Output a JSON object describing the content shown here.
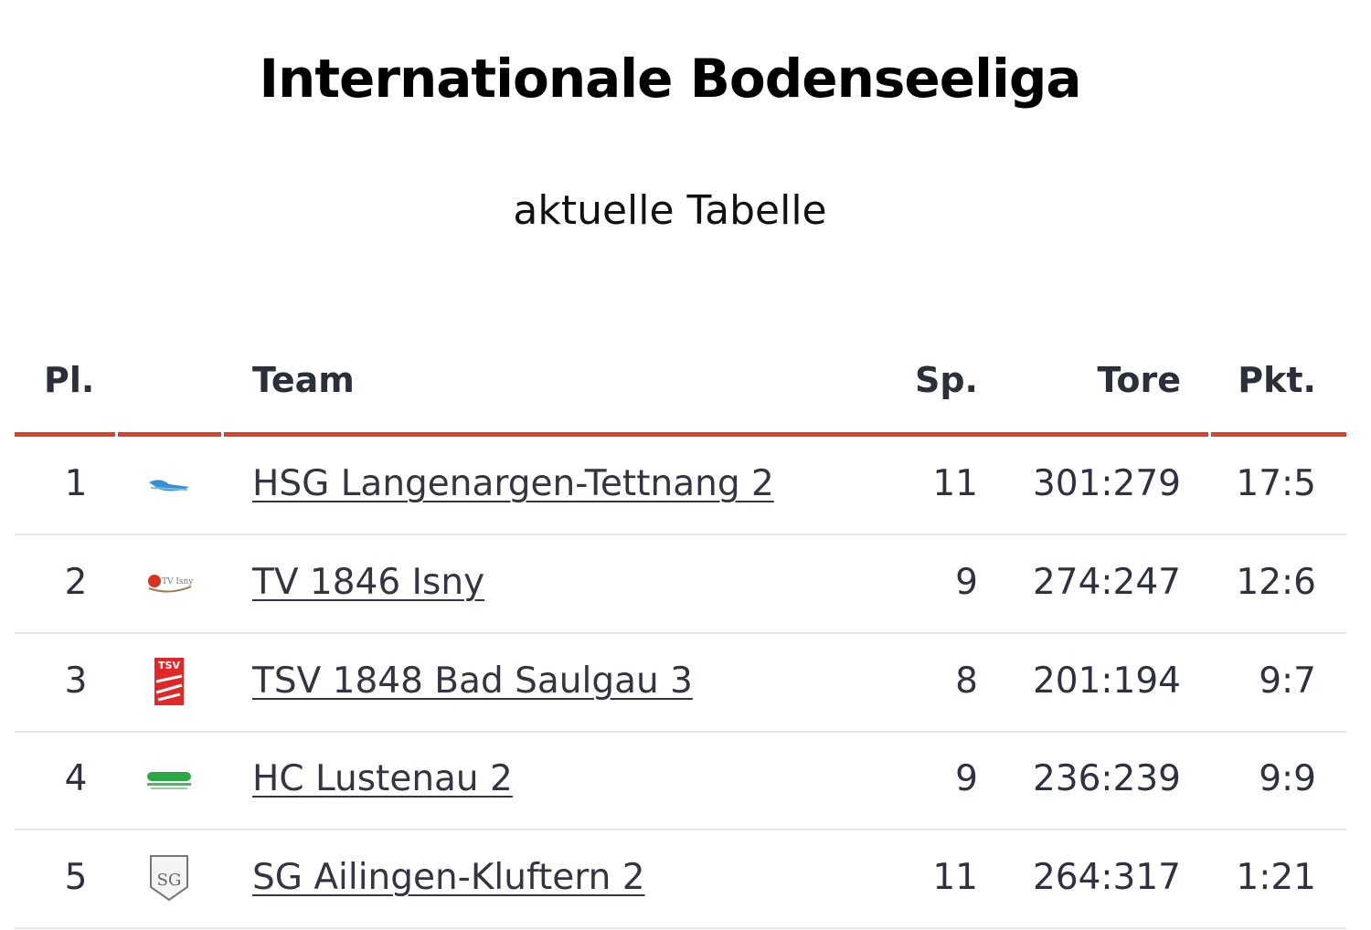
{
  "header": {
    "title": "Internationale Bodenseeliga",
    "subtitle": "aktuelle Tabelle"
  },
  "table": {
    "columns": [
      "Pl.",
      "Team",
      "Sp.",
      "Tore",
      "Pkt."
    ],
    "rows": [
      [
        1,
        "HSG Langenargen-Tettnang 2",
        11,
        "301:279",
        "17:5"
      ],
      [
        2,
        "TV 1846 Isny",
        9,
        "274:247",
        "12:6"
      ],
      [
        3,
        "TSV 1848 Bad Saulgau 3",
        8,
        "201:194",
        "9:7"
      ],
      [
        4,
        "HC Lustenau 2",
        9,
        "236:239",
        "9:9"
      ],
      [
        5,
        "SG Ailingen-Kluftern 2",
        11,
        "264:317",
        "1:21"
      ]
    ]
  }
}
